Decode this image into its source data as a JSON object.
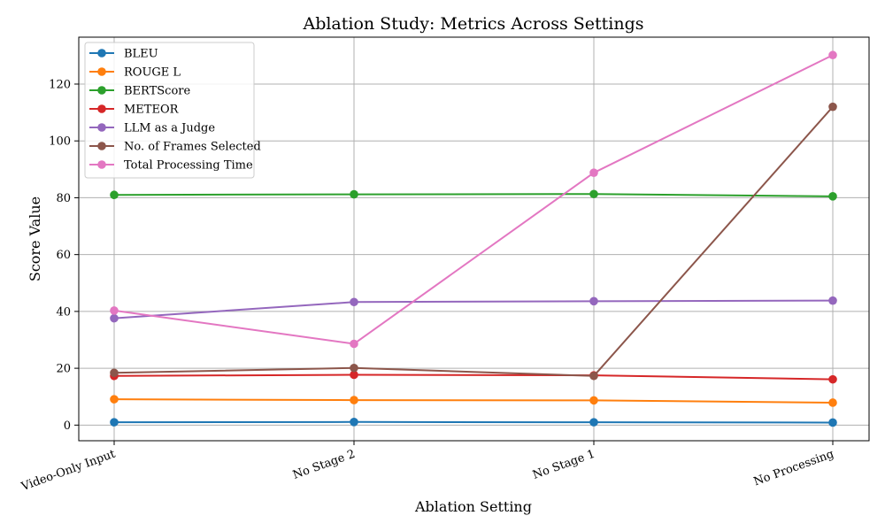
{
  "chart_data": {
    "type": "line",
    "title": "Ablation Study: Metrics Across Settings",
    "xlabel": "Ablation Setting",
    "ylabel": "Score Value",
    "categories": [
      "Video-Only Input",
      "No Stage 2",
      "No Stage 1",
      "No Processing"
    ],
    "ylim": [
      -5.5,
      136.5
    ],
    "yticks": [
      0,
      20,
      40,
      60,
      80,
      100,
      120
    ],
    "grid": true,
    "legend_position": "top-left",
    "series": [
      {
        "name": "BLEU",
        "color": "#1f77b4",
        "values": [
          1.0,
          1.1,
          1.0,
          0.9
        ]
      },
      {
        "name": "ROUGE L",
        "color": "#ff7f0e",
        "values": [
          9.1,
          8.8,
          8.7,
          7.9
        ]
      },
      {
        "name": "BERTScore",
        "color": "#2ca02c",
        "values": [
          81.0,
          81.2,
          81.3,
          80.5
        ]
      },
      {
        "name": "METEOR",
        "color": "#d62728",
        "values": [
          17.3,
          17.7,
          17.5,
          16.1
        ]
      },
      {
        "name": "LLM as a Judge",
        "color": "#9467bd",
        "values": [
          37.6,
          43.3,
          43.6,
          43.8
        ]
      },
      {
        "name": "No. of Frames Selected",
        "color": "#8c564b",
        "values": [
          18.4,
          20.1,
          17.3,
          112.0
        ]
      },
      {
        "name": "Total Processing Time",
        "color": "#e377c2",
        "values": [
          40.3,
          28.6,
          88.8,
          130.2
        ]
      }
    ]
  }
}
